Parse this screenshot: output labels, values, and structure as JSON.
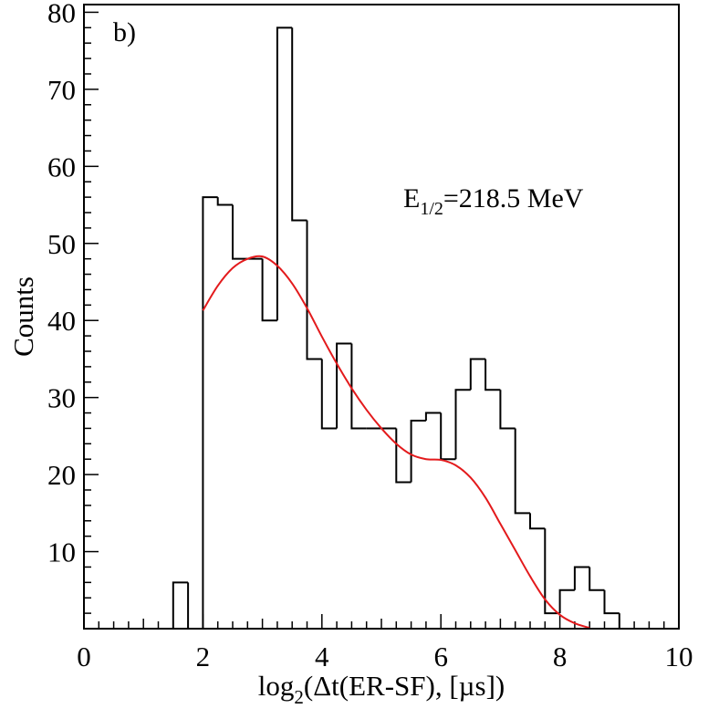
{
  "chart_data": {
    "type": "histogram",
    "panel_label": "b)",
    "annotation": {
      "main": "E",
      "sub": "1/2",
      "rest": "=218.5 MeV"
    },
    "xlabel": {
      "pre": "log",
      "sub": "2",
      "post": "(Δt(ER-SF), [µs])"
    },
    "ylabel": "Counts",
    "xlim": [
      0,
      10
    ],
    "ylim": [
      0,
      81
    ],
    "x_major_ticks": [
      0,
      2,
      4,
      6,
      8,
      10
    ],
    "x_tick_labels": [
      "0",
      "2",
      "4",
      "6",
      "8",
      "10"
    ],
    "y_major_ticks": [
      10,
      20,
      30,
      40,
      50,
      60,
      70,
      80
    ],
    "y_tick_labels": [
      "10",
      "20",
      "30",
      "40",
      "50",
      "60",
      "70",
      "80"
    ],
    "bin_width": 0.25,
    "bin_start": 0,
    "histogram_counts": [
      0,
      0,
      0,
      0,
      0,
      0,
      6,
      0,
      56,
      55,
      48,
      48,
      40,
      78,
      53,
      35,
      26,
      37,
      26,
      26,
      26,
      19,
      27,
      28,
      22,
      31,
      35,
      31,
      26,
      15,
      13,
      2,
      5,
      8,
      5,
      2,
      0,
      0,
      0,
      0
    ],
    "fit_curve": {
      "color": "#e31a1c",
      "points": [
        [
          2.0,
          41.3
        ],
        [
          2.25,
          44.5
        ],
        [
          2.5,
          46.8
        ],
        [
          2.75,
          48.0
        ],
        [
          3.0,
          48.3
        ],
        [
          3.25,
          47.1
        ],
        [
          3.5,
          44.8
        ],
        [
          3.75,
          41.6
        ],
        [
          4.0,
          37.9
        ],
        [
          4.25,
          34.4
        ],
        [
          4.5,
          31.2
        ],
        [
          4.75,
          28.4
        ],
        [
          5.0,
          26.0
        ],
        [
          5.25,
          24.0
        ],
        [
          5.5,
          22.6
        ],
        [
          5.75,
          22.0
        ],
        [
          6.0,
          21.9
        ],
        [
          6.25,
          21.2
        ],
        [
          6.5,
          19.6
        ],
        [
          6.75,
          17.0
        ],
        [
          7.0,
          13.6
        ],
        [
          7.25,
          10.2
        ],
        [
          7.5,
          6.8
        ],
        [
          7.75,
          3.8
        ],
        [
          8.0,
          1.8
        ],
        [
          8.25,
          0.7
        ],
        [
          8.5,
          0.1
        ]
      ]
    }
  }
}
